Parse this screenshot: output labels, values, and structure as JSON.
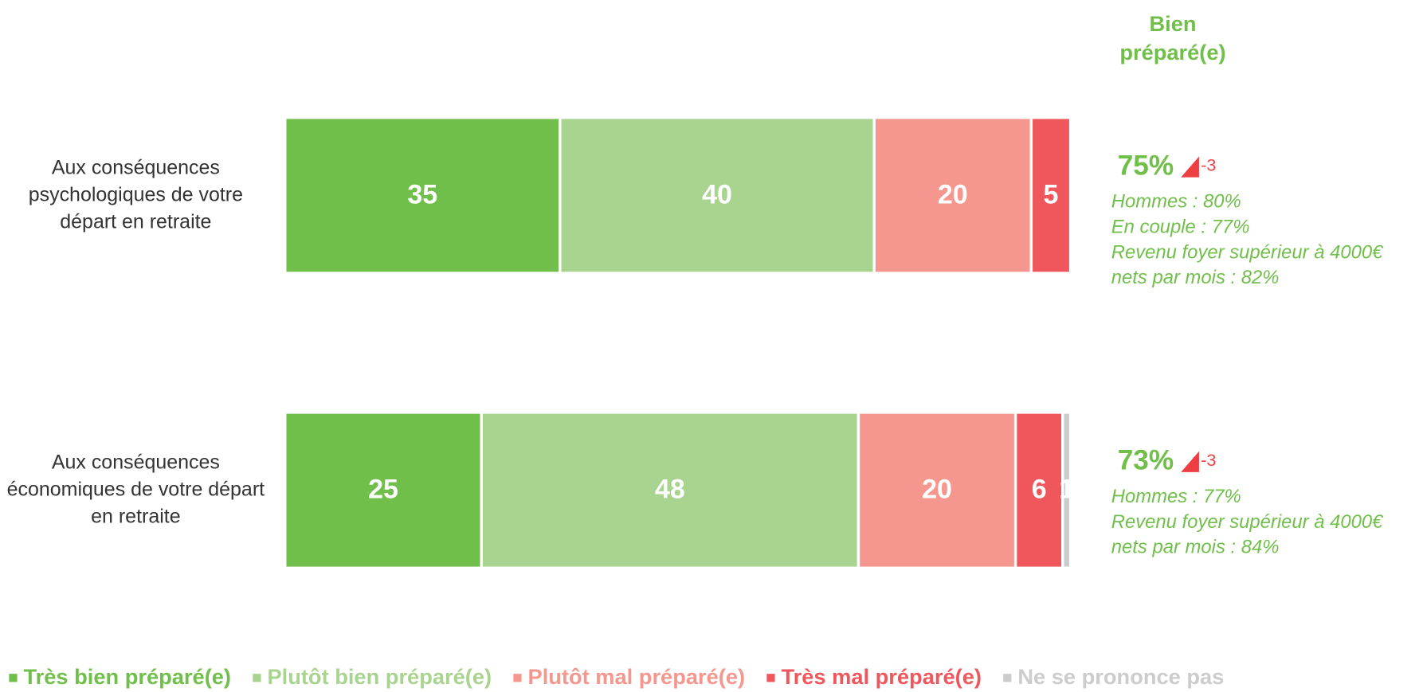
{
  "chart_data": {
    "type": "stacked-bar-horizontal",
    "title": "Bien préparé(e)",
    "categories": [
      "Aux conséquences psychologiques de votre départ en retraite",
      "Aux conséquences économiques de votre départ en retraite"
    ],
    "xlim": [
      0,
      100
    ],
    "series": [
      {
        "name": "Très bien préparé(e)",
        "color": "#70bf4a",
        "values": [
          35,
          25
        ]
      },
      {
        "name": "Plutôt bien préparé(e)",
        "color": "#a9d48f",
        "values": [
          40,
          48
        ]
      },
      {
        "name": "Plutôt mal préparé(e)",
        "color": "#f5978e",
        "values": [
          20,
          20
        ]
      },
      {
        "name": "Très mal préparé(e)",
        "color": "#ef575c",
        "values": [
          5,
          6
        ]
      },
      {
        "name": "Ne se prononce pas",
        "color": "#cccccc",
        "values": [
          null,
          1
        ]
      }
    ],
    "summary": [
      {
        "total": "75%",
        "change": "-3",
        "details": [
          "Hommes : 80%",
          "En couple : 77%",
          "Revenu foyer supérieur à 4000€",
          "nets par mois  : 82%"
        ]
      },
      {
        "total": "73%",
        "change": "-3",
        "details": [
          "Hommes : 77%",
          "Revenu foyer supérieur à 4000€",
          "nets par mois  : 84%"
        ]
      }
    ]
  }
}
